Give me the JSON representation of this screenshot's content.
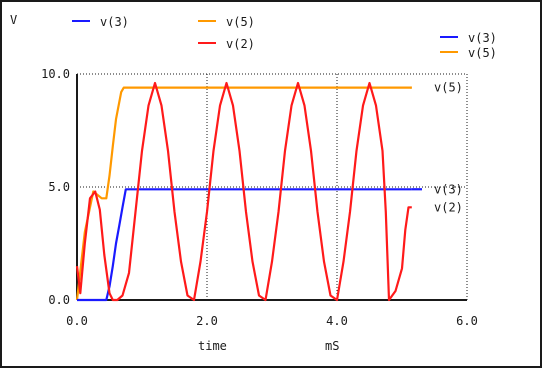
{
  "chart_data": {
    "type": "line",
    "title": "",
    "ylabel": "V",
    "xlabel": "time",
    "xunit": "mS",
    "xlim": [
      0,
      6
    ],
    "ylim": [
      0,
      10
    ],
    "xticks": [
      0,
      2,
      4,
      6
    ],
    "xtick_labels": [
      "0.0",
      "2.0",
      "4.0",
      "6.0"
    ],
    "yticks": [
      0,
      5,
      10
    ],
    "ytick_labels": [
      "0.0",
      "5.0",
      "10.0"
    ],
    "grid": "dotted",
    "legend_top": [
      {
        "name": "v(3)",
        "color": "#1a1aff"
      },
      {
        "name": "v(5)",
        "color": "#ff9900"
      },
      {
        "name": "v(2)",
        "color": "#ff1a1a"
      }
    ],
    "legend_right": [
      {
        "name": "v(3)",
        "color": "#1a1aff"
      },
      {
        "name": "v(5)",
        "color": "#ff9900"
      }
    ],
    "end_labels": [
      {
        "series": "v(5)",
        "text": "v(5)"
      },
      {
        "series": "v(3)",
        "text": "v(3)"
      },
      {
        "series": "v(2)",
        "text": "v(2)"
      }
    ],
    "series": [
      {
        "name": "v(5)",
        "color": "#ff9900",
        "x": [
          0,
          0.12,
          0.25,
          0.38,
          0.45,
          0.5,
          0.55,
          0.6,
          0.68,
          0.72,
          5.15
        ],
        "y": [
          0,
          3.0,
          4.8,
          4.5,
          4.5,
          5.5,
          6.8,
          8.0,
          9.2,
          9.4,
          9.4
        ]
      },
      {
        "name": "v(3)",
        "color": "#1a1aff",
        "x": [
          0,
          0.45,
          0.5,
          0.55,
          0.6,
          0.65,
          0.7,
          0.75,
          5.15
        ],
        "y": [
          0,
          0,
          0.6,
          1.5,
          2.5,
          3.3,
          4.1,
          4.9,
          4.9
        ]
      },
      {
        "name": "v(2)",
        "color": "#ff1a1a",
        "x": [
          0,
          0.05,
          0.12,
          0.2,
          0.28,
          0.35,
          0.42,
          0.5,
          0.55,
          0.62,
          0.7,
          0.8,
          0.9,
          1.0,
          1.1,
          1.2,
          1.3,
          1.4,
          1.5,
          1.6,
          1.7,
          1.8,
          1.9,
          2.0,
          2.1,
          2.2,
          2.3,
          2.4,
          2.5,
          2.6,
          2.7,
          2.8,
          2.9,
          3.0,
          3.1,
          3.2,
          3.3,
          3.4,
          3.5,
          3.6,
          3.7,
          3.8,
          3.9,
          4.0,
          4.1,
          4.2,
          4.3,
          4.4,
          4.5,
          4.6,
          4.7,
          4.75,
          4.8,
          4.9,
          5.0,
          5.05,
          5.1,
          5.15
        ],
        "y": [
          1.5,
          0.3,
          2.5,
          4.5,
          4.8,
          4.0,
          2.0,
          0.3,
          0.0,
          0.0,
          0.2,
          1.2,
          3.9,
          6.6,
          8.6,
          9.6,
          8.6,
          6.6,
          3.9,
          1.7,
          0.2,
          0.0,
          1.7,
          3.9,
          6.6,
          8.6,
          9.6,
          8.6,
          6.6,
          3.9,
          1.7,
          0.2,
          0.0,
          1.7,
          3.9,
          6.6,
          8.6,
          9.6,
          8.6,
          6.6,
          3.9,
          1.7,
          0.2,
          0.0,
          1.7,
          3.9,
          6.6,
          8.6,
          9.6,
          8.6,
          6.6,
          3.9,
          0.0,
          0.4,
          1.4,
          3.1,
          4.1,
          4.1
        ]
      }
    ]
  }
}
